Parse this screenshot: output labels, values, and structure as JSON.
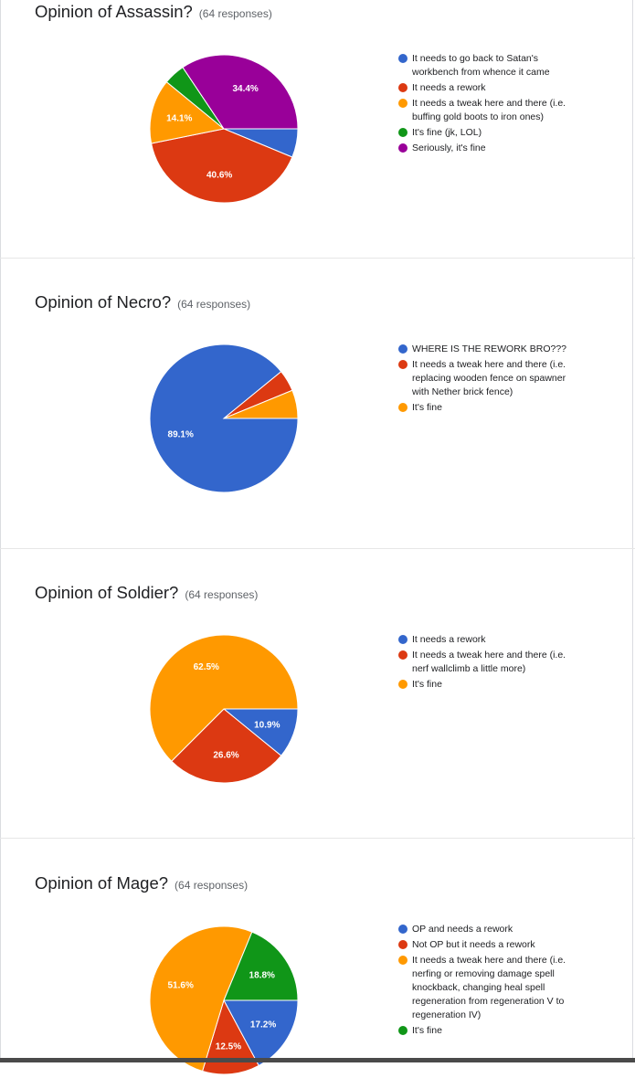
{
  "palette": {
    "blue": "#3366cc",
    "red": "#dc3912",
    "orange": "#ff9900",
    "green": "#109618",
    "purple": "#990099"
  },
  "charts": [
    {
      "title": "Opinion of Assassin?",
      "responses": "(64 responses)",
      "legend": [
        "It needs to go back to Satan's workbench from whence it came",
        "It needs a rework",
        "It needs a tweak here and there (i.e. buffing gold boots to iron ones)",
        "It's fine (jk, LOL)",
        "Seriously, it's fine"
      ]
    },
    {
      "title": "Opinion of Necro?",
      "responses": "(64 responses)",
      "legend": [
        "WHERE IS THE REWORK BRO???",
        "It needs a tweak here and there (i.e. replacing wooden fence on spawner with Nether brick fence)",
        "It's fine"
      ]
    },
    {
      "title": "Opinion of Soldier?",
      "responses": "(64 responses)",
      "legend": [
        "It needs a rework",
        "It needs a tweak here and there (i.e. nerf wallclimb a little more)",
        "It's fine"
      ]
    },
    {
      "title": "Opinion of Mage?",
      "responses": "(64 responses)",
      "legend": [
        "OP and needs a rework",
        "Not OP but it needs a rework",
        "It needs a tweak here and there (i.e. nerfing or removing damage spell knockback, changing heal spell regeneration from regeneration V to regeneration IV)",
        "It's fine"
      ]
    }
  ],
  "chart_data": [
    {
      "type": "pie",
      "title": "Opinion of Assassin?",
      "categories": [
        "It needs to go back to Satan's workbench from whence it came",
        "It needs a rework",
        "It needs a tweak here and there (i.e. buffing gold boots to iron ones)",
        "It's fine (jk, LOL)",
        "Seriously, it's fine"
      ],
      "values": [
        6.25,
        40.6,
        14.1,
        4.7,
        34.4
      ],
      "labels": [
        "",
        "40.6%",
        "14.1%",
        "",
        "34.4%"
      ],
      "colors": [
        "#3366cc",
        "#dc3912",
        "#ff9900",
        "#109618",
        "#990099"
      ],
      "legend": "right"
    },
    {
      "type": "pie",
      "title": "Opinion of Necro?",
      "categories": [
        "WHERE IS THE REWORK BRO???",
        "It needs a tweak here and there (i.e. replacing wooden fence on spawner with Nether brick fence)",
        "It's fine"
      ],
      "values": [
        89.1,
        4.7,
        6.2
      ],
      "labels": [
        "89.1%",
        "",
        ""
      ],
      "colors": [
        "#3366cc",
        "#dc3912",
        "#ff9900"
      ],
      "legend": "right"
    },
    {
      "type": "pie",
      "title": "Opinion of Soldier?",
      "categories": [
        "It needs a rework",
        "It needs a tweak here and there (i.e. nerf wallclimb a little more)",
        "It's fine"
      ],
      "values": [
        10.9,
        26.6,
        62.5
      ],
      "labels": [
        "10.9%",
        "26.6%",
        "62.5%"
      ],
      "colors": [
        "#3366cc",
        "#dc3912",
        "#ff9900"
      ],
      "legend": "right"
    },
    {
      "type": "pie",
      "title": "Opinion of Mage?",
      "categories": [
        "OP and needs a rework",
        "Not OP but it needs a rework",
        "It needs a tweak here and there (i.e. nerfing or removing damage spell knockback, changing heal spell regeneration from regeneration V to regeneration IV)",
        "It's fine"
      ],
      "values": [
        17.2,
        12.5,
        51.6,
        18.8
      ],
      "labels": [
        "17.2%",
        "12.5%",
        "51.6%",
        "18.8%"
      ],
      "colors": [
        "#3366cc",
        "#dc3912",
        "#ff9900",
        "#109618"
      ],
      "legend": "right"
    }
  ]
}
